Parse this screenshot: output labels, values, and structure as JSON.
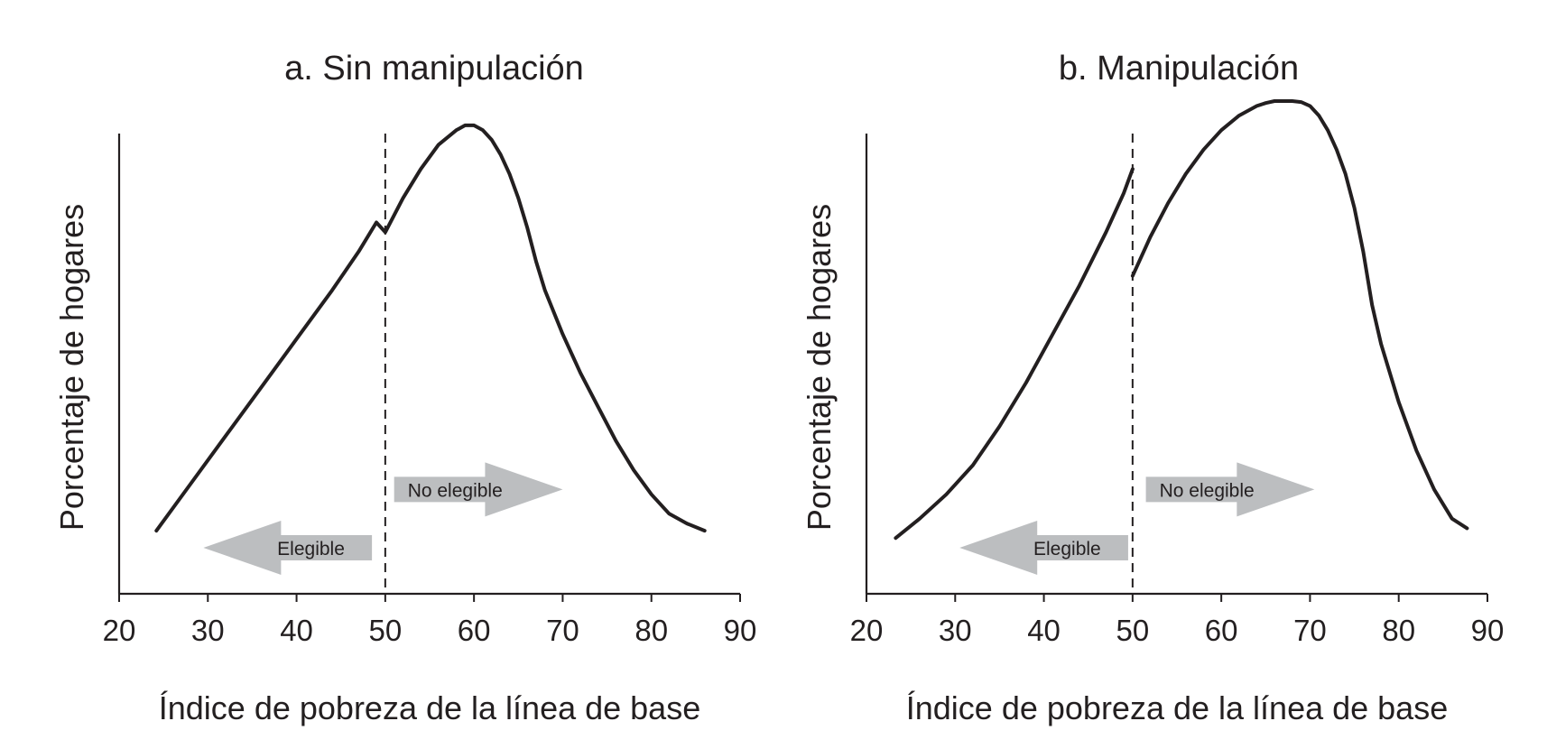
{
  "chart_data": [
    {
      "type": "line",
      "title": "a. Sin manipulación",
      "xlabel": "Índice de pobreza de la línea de base",
      "ylabel": "Porcentaje de hogares",
      "xlim": [
        20,
        90
      ],
      "ylim": [
        0,
        100
      ],
      "xticks": [
        "20",
        "30",
        "40",
        "50",
        "60",
        "70",
        "80",
        "90"
      ],
      "yticks": [],
      "cutoff": 50,
      "annotations": [
        {
          "label": "Elegible",
          "direction": "left",
          "x_from": 48.5,
          "x_to": 29.5,
          "y": 8
        },
        {
          "label": "No elegible",
          "direction": "right",
          "x_from": 51,
          "x_to": 70,
          "y": 20
        }
      ],
      "series": [
        {
          "segments": [
            {
              "x": [
                24.2,
                28,
                32,
                36,
                40,
                44,
                47,
                49,
                50,
                52,
                54,
                56,
                58,
                59,
                60,
                61,
                62,
                63,
                64,
                65,
                66,
                67,
                68,
                70,
                72,
                74,
                76,
                78,
                80,
                82,
                84,
                86
              ],
              "y": [
                11.5,
                21,
                31,
                41,
                51,
                61,
                69,
                75,
                73,
                80,
                86,
                91,
                94,
                95,
                95,
                94,
                92,
                89,
                85,
                80,
                74,
                67,
                61,
                52,
                44,
                37,
                30,
                24,
                19,
                15,
                13,
                11.5
              ]
            }
          ]
        }
      ]
    },
    {
      "type": "line",
      "title": "b. Manipulación",
      "xlabel": "Índice de pobreza de la línea de base",
      "ylabel": "Porcentaje de hogares",
      "xlim": [
        20,
        90
      ],
      "ylim": [
        0,
        100
      ],
      "xticks": [
        "20",
        "30",
        "40",
        "50",
        "60",
        "70",
        "80",
        "90"
      ],
      "yticks": [],
      "cutoff": 50,
      "annotations": [
        {
          "label": "Elegible",
          "direction": "left",
          "x_from": 49.5,
          "x_to": 30.5,
          "y": 8
        },
        {
          "label": "No elegible",
          "direction": "right",
          "x_from": 51.5,
          "x_to": 70.5,
          "y": 20
        }
      ],
      "series": [
        {
          "segments": [
            {
              "x": [
                23.3,
                26,
                29,
                32,
                35,
                38,
                41,
                44,
                47,
                49,
                50
              ],
              "y": [
                10,
                14,
                19,
                25,
                33,
                42,
                52,
                62,
                73,
                81,
                86
              ]
            },
            {
              "x": [
                50,
                52,
                54,
                56,
                58,
                60,
                62,
                64,
                65,
                66,
                67,
                68,
                69,
                70,
                71,
                72,
                73,
                74,
                75,
                76,
                77,
                78,
                80,
                82,
                84,
                86,
                87.7
              ],
              "y": [
                64,
                72,
                79,
                85,
                90,
                94,
                97,
                99,
                99.6,
                100,
                100,
                100,
                99.8,
                99,
                97,
                94,
                90,
                85,
                78,
                69,
                58,
                50,
                38,
                28,
                20,
                14,
                12
              ]
            }
          ]
        }
      ]
    }
  ]
}
